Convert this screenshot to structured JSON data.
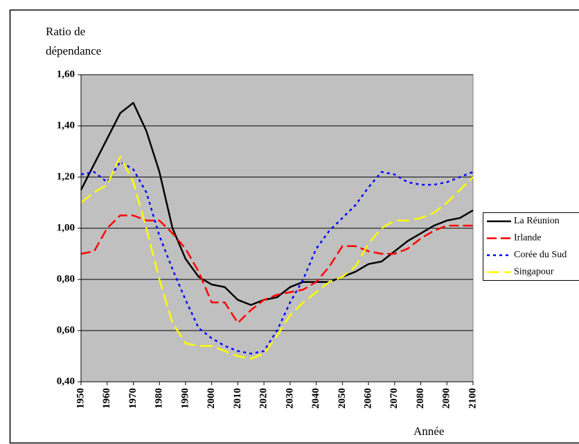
{
  "chart_data": {
    "type": "line",
    "ylabel": "Ratio de dépendance",
    "xlabel": "Année",
    "x": [
      1950,
      1955,
      1960,
      1965,
      1970,
      1975,
      1980,
      1985,
      1990,
      1995,
      2000,
      2005,
      2010,
      2015,
      2020,
      2025,
      2030,
      2035,
      2040,
      2045,
      2050,
      2055,
      2060,
      2065,
      2070,
      2075,
      2080,
      2085,
      2090,
      2095,
      2100
    ],
    "series": [
      {
        "name": "La Réunion",
        "color": "#000000",
        "dash": "solid",
        "values": [
          1.15,
          1.25,
          1.35,
          1.45,
          1.49,
          1.38,
          1.22,
          1.0,
          0.88,
          0.81,
          0.78,
          0.77,
          0.72,
          0.7,
          0.72,
          0.73,
          0.77,
          0.79,
          0.79,
          0.79,
          0.81,
          0.83,
          0.86,
          0.87,
          0.91,
          0.95,
          0.98,
          1.01,
          1.03,
          1.04,
          1.07
        ]
      },
      {
        "name": "Irlande",
        "color": "#ff0000",
        "dash": "dashed",
        "values": [
          0.9,
          0.91,
          1.0,
          1.05,
          1.05,
          1.03,
          1.03,
          0.98,
          0.92,
          0.83,
          0.71,
          0.71,
          0.63,
          0.68,
          0.72,
          0.74,
          0.75,
          0.76,
          0.79,
          0.85,
          0.93,
          0.93,
          0.91,
          0.9,
          0.9,
          0.92,
          0.96,
          0.99,
          1.01,
          1.01,
          1.01
        ]
      },
      {
        "name": "Corée du Sud",
        "color": "#0000ff",
        "dash": "dotted",
        "values": [
          1.21,
          1.22,
          1.18,
          1.26,
          1.23,
          1.14,
          0.97,
          0.84,
          0.72,
          0.61,
          0.57,
          0.54,
          0.52,
          0.51,
          0.52,
          0.6,
          0.71,
          0.8,
          0.92,
          0.99,
          1.04,
          1.09,
          1.16,
          1.22,
          1.21,
          1.18,
          1.17,
          1.17,
          1.18,
          1.2,
          1.22
        ]
      },
      {
        "name": "Singapour",
        "color": "#ffff00",
        "dash": "longdash",
        "values": [
          1.1,
          1.14,
          1.17,
          1.28,
          1.18,
          1.0,
          0.8,
          0.63,
          0.55,
          0.54,
          0.54,
          0.52,
          0.5,
          0.49,
          0.51,
          0.58,
          0.66,
          0.71,
          0.75,
          0.79,
          0.81,
          0.85,
          0.94,
          1.0,
          1.03,
          1.03,
          1.04,
          1.06,
          1.1,
          1.15,
          1.2
        ]
      }
    ],
    "xlim": [
      1950,
      2100
    ],
    "xticks": [
      1950,
      1960,
      1970,
      1980,
      1990,
      2000,
      2010,
      2020,
      2030,
      2040,
      2050,
      2060,
      2070,
      2080,
      2090,
      2100
    ],
    "ylim": [
      0.4,
      1.6
    ],
    "yticks": [
      {
        "value": 0.4,
        "label": "0,40"
      },
      {
        "value": 0.6,
        "label": "0,60"
      },
      {
        "value": 0.8,
        "label": "0,80"
      },
      {
        "value": 1.0,
        "label": "1,00"
      },
      {
        "value": 1.2,
        "label": "1,20"
      },
      {
        "value": 1.4,
        "label": "1,40"
      },
      {
        "value": 1.6,
        "label": "1,60"
      }
    ],
    "grid": true,
    "legend": "right"
  }
}
